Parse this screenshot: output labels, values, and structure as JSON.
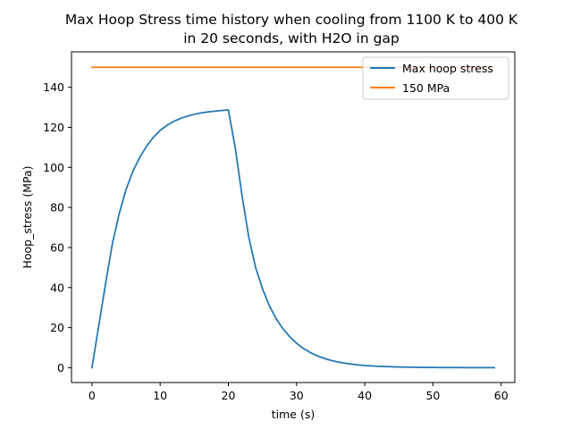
{
  "chart_data": {
    "type": "line",
    "title_lines": [
      "Max Hoop Stress time history when cooling from 1100 K to 400 K",
      "in 20 seconds, with H2O in gap"
    ],
    "xlabel": "time (s)",
    "ylabel": "Hoop_stress (MPa)",
    "xlim": [
      -3,
      62
    ],
    "ylim": [
      -7.4,
      157.7
    ],
    "xticks": [
      0,
      10,
      20,
      30,
      40,
      50,
      60
    ],
    "yticks": [
      0,
      20,
      40,
      60,
      80,
      100,
      120,
      140
    ],
    "grid": false,
    "legend": {
      "placement": "upper-right"
    },
    "series": [
      {
        "name": "Max hoop stress",
        "color": "#1f77b4",
        "x": [
          0,
          1,
          2,
          3,
          4,
          5,
          6,
          7,
          8,
          9,
          10,
          11,
          12,
          13,
          14,
          15,
          16,
          17,
          18,
          19,
          20,
          21,
          22,
          23,
          24,
          25,
          26,
          27,
          28,
          29,
          30,
          31,
          32,
          33,
          34,
          35,
          36,
          37,
          38,
          39,
          40,
          41,
          42,
          43,
          44,
          45,
          46,
          47,
          48,
          49,
          50,
          51,
          52,
          53,
          54,
          55,
          56,
          57,
          58,
          59
        ],
        "y": [
          0,
          21,
          42,
          62,
          77,
          89,
          98,
          105,
          110.5,
          115,
          118.5,
          121,
          123,
          124.5,
          125.6,
          126.5,
          127.2,
          127.7,
          128.1,
          128.4,
          128.7,
          110,
          86,
          65,
          50,
          39.5,
          31,
          24.5,
          19.5,
          15.5,
          12.2,
          9.6,
          7.6,
          6.0,
          4.7,
          3.7,
          2.9,
          2.3,
          1.8,
          1.4,
          1.1,
          0.9,
          0.7,
          0.55,
          0.45,
          0.35,
          0.28,
          0.22,
          0.18,
          0.14,
          0.11,
          0.09,
          0.07,
          0.06,
          0.05,
          0.04,
          0.03,
          0.03,
          0.02,
          0.02
        ]
      },
      {
        "name": "150 MPa",
        "color": "#ff7f0e",
        "x": [
          0,
          59
        ],
        "y": [
          150,
          150
        ]
      }
    ]
  }
}
